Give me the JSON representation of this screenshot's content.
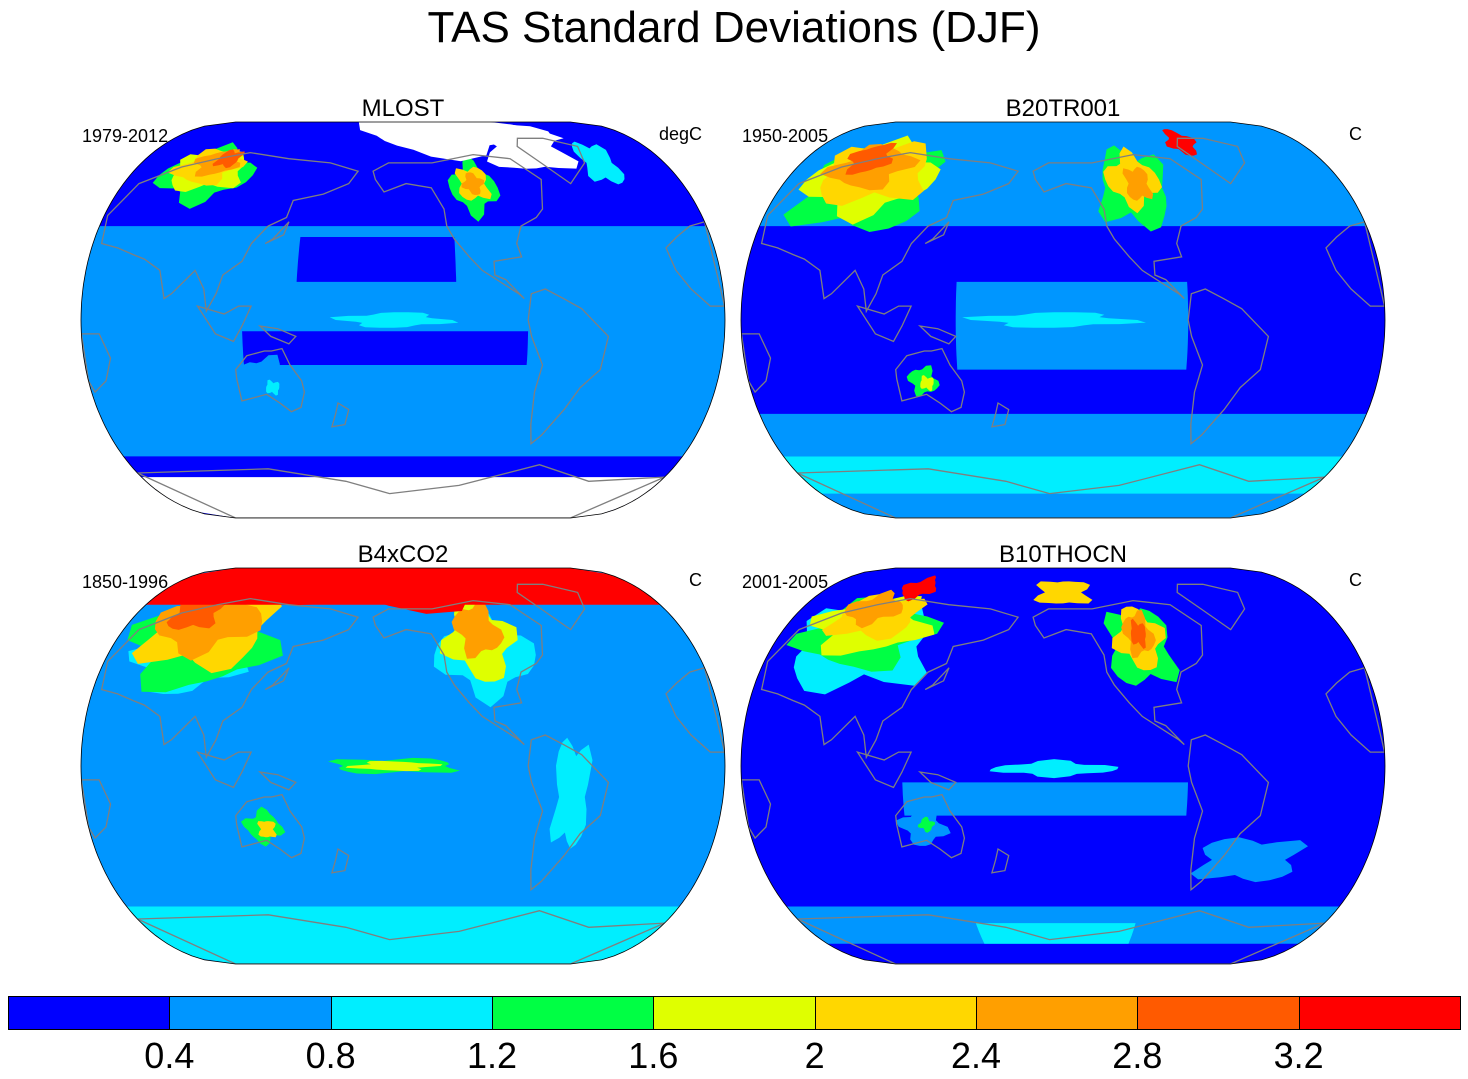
{
  "title": "TAS Standard Deviations (DJF)",
  "panels": [
    {
      "name": "MLOST",
      "period": "1979-2012",
      "units": "degC",
      "pattern": "obs"
    },
    {
      "name": "B20TR001",
      "period": "1950-2005",
      "units": "C",
      "pattern": "hist"
    },
    {
      "name": "B4xCO2",
      "period": "1850-1996",
      "units": "C",
      "pattern": "co2"
    },
    {
      "name": "B10THOCN",
      "period": "2001-2005",
      "units": "C",
      "pattern": "thocn"
    }
  ],
  "colorbar": {
    "labels": [
      "0.4",
      "0.8",
      "1.2",
      "1.6",
      "2",
      "2.4",
      "2.8",
      "3.2"
    ],
    "colors": [
      "#0000ff",
      "#0096ff",
      "#00eeff",
      "#00ff44",
      "#dfff00",
      "#ffd700",
      "#ff9f00",
      "#ff5a00",
      "#ff0000"
    ]
  },
  "colors": {
    "coastline": "#7f7f7f",
    "missing": "#ffffff"
  }
}
